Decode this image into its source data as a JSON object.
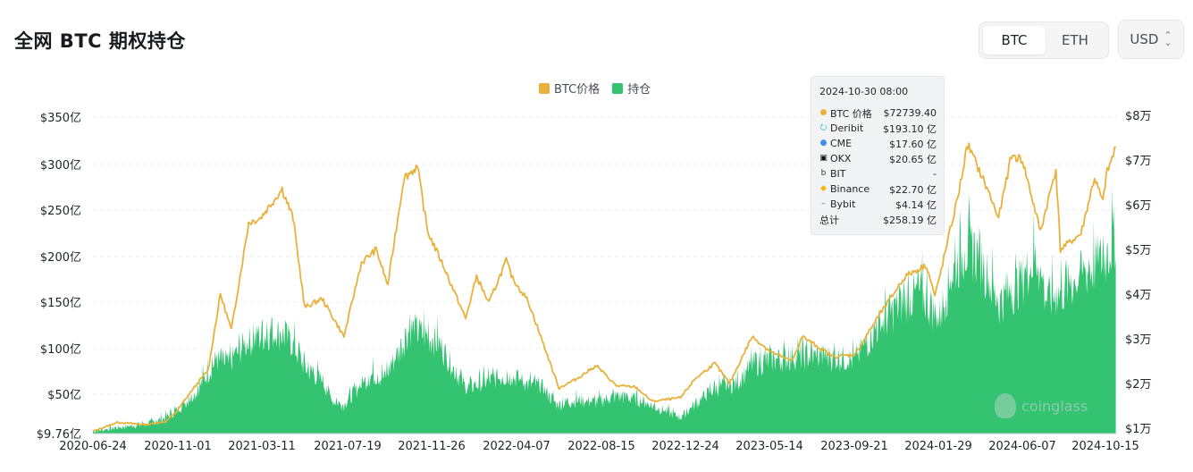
{
  "page": {
    "title": "全网 BTC 期权持仓",
    "asset_toggle": {
      "options": [
        "BTC",
        "ETH"
      ],
      "selected": "BTC"
    },
    "currency_select": {
      "value": "USD"
    }
  },
  "colors": {
    "price": "#e8b13c",
    "oi": "#33c371",
    "grid": "#e9ecef"
  },
  "legend": [
    {
      "name": "BTC价格",
      "color": "#e8b13c"
    },
    {
      "name": "持仓",
      "color": "#33c371"
    }
  ],
  "tooltip": {
    "time": "2024-10-30 08:00",
    "rows": [
      {
        "icon": "btc-price-icon",
        "label": "BTC 价格",
        "value": "$72739.40",
        "color": "#e8b13c"
      },
      {
        "icon": "deribit-icon",
        "label": "Deribit",
        "value": "$193.10 亿",
        "color": "#1bb5c9"
      },
      {
        "icon": "cme-icon",
        "label": "CME",
        "value": "$17.60 亿",
        "color": "#3c8ee8"
      },
      {
        "icon": "okx-icon",
        "label": "OKX",
        "value": "$20.65 亿",
        "color": "#111111"
      },
      {
        "icon": "bit-icon",
        "label": "BIT",
        "value": "-",
        "color": "#333333"
      },
      {
        "icon": "binance-icon",
        "label": "Binance",
        "value": "$22.70 亿",
        "color": "#f0b90b"
      },
      {
        "icon": "bybit-icon",
        "label": "Bybit",
        "value": "$4.14 亿",
        "color": "#555555"
      },
      {
        "icon": "",
        "label": "总计",
        "value": "$258.19 亿",
        "color": ""
      }
    ]
  },
  "watermark": "coinglass",
  "chart_data": {
    "type": "area",
    "title": "全网 BTC 期权持仓",
    "x_ticks": [
      "2020-06-24",
      "2020-11-01",
      "2021-03-11",
      "2021-07-19",
      "2021-11-26",
      "2022-04-07",
      "2022-08-15",
      "2022-12-24",
      "2023-05-14",
      "2023-09-21",
      "2024-01-29",
      "2024-06-07",
      "2024-10-15"
    ],
    "y_left": {
      "ticks": [
        "$9.76亿",
        "$50亿",
        "$100亿",
        "$150亿",
        "$200亿",
        "$250亿",
        "$300亿",
        "$350亿"
      ],
      "tick_values": [
        9.76,
        50,
        100,
        150,
        200,
        250,
        300,
        350
      ],
      "range": [
        9.76,
        350
      ],
      "unit": "亿 USD"
    },
    "y_right": {
      "ticks": [
        "$1万",
        "$2万",
        "$3万",
        "$4万",
        "$5万",
        "$6万",
        "$7万",
        "$8万"
      ],
      "tick_values": [
        10000,
        20000,
        30000,
        40000,
        50000,
        60000,
        70000,
        80000
      ],
      "range": [
        10000,
        80000
      ],
      "unit": "USD"
    },
    "grid": true,
    "legend_position": "top-center",
    "series": [
      {
        "name": "持仓",
        "axis": "left",
        "style": "area",
        "points": [
          [
            "2020-06-24",
            14
          ],
          [
            "2020-08-01",
            18
          ],
          [
            "2020-09-15",
            22
          ],
          [
            "2020-10-15",
            30
          ],
          [
            "2020-11-01",
            38
          ],
          [
            "2020-12-01",
            60
          ],
          [
            "2021-01-01",
            100
          ],
          [
            "2021-01-20",
            95
          ],
          [
            "2021-02-15",
            120
          ],
          [
            "2021-03-11",
            130
          ],
          [
            "2021-03-26",
            135
          ],
          [
            "2021-04-15",
            132
          ],
          [
            "2021-05-01",
            120
          ],
          [
            "2021-05-20",
            90
          ],
          [
            "2021-06-15",
            75
          ],
          [
            "2021-07-01",
            50
          ],
          [
            "2021-07-19",
            45
          ],
          [
            "2021-08-15",
            70
          ],
          [
            "2021-09-01",
            82
          ],
          [
            "2021-09-20",
            78
          ],
          [
            "2021-10-15",
            115
          ],
          [
            "2021-10-29",
            140
          ],
          [
            "2021-11-26",
            130
          ],
          [
            "2021-12-15",
            120
          ],
          [
            "2022-01-01",
            95
          ],
          [
            "2022-01-25",
            65
          ],
          [
            "2022-02-20",
            72
          ],
          [
            "2022-03-15",
            78
          ],
          [
            "2022-04-07",
            80
          ],
          [
            "2022-05-01",
            70
          ],
          [
            "2022-05-20",
            68
          ],
          [
            "2022-06-15",
            45
          ],
          [
            "2022-07-15",
            50
          ],
          [
            "2022-08-15",
            48
          ],
          [
            "2022-09-15",
            55
          ],
          [
            "2022-10-15",
            52
          ],
          [
            "2022-11-15",
            42
          ],
          [
            "2022-12-24",
            30
          ],
          [
            "2023-01-15",
            45
          ],
          [
            "2023-02-15",
            65
          ],
          [
            "2023-03-20",
            70
          ],
          [
            "2023-04-15",
            95
          ],
          [
            "2023-05-14",
            100
          ],
          [
            "2023-06-30",
            105
          ],
          [
            "2023-08-01",
            105
          ],
          [
            "2023-09-21",
            100
          ],
          [
            "2023-10-25",
            140
          ],
          [
            "2023-12-01",
            170
          ],
          [
            "2024-01-01",
            185
          ],
          [
            "2024-01-29",
            150
          ],
          [
            "2024-02-20",
            210
          ],
          [
            "2024-03-10",
            240
          ],
          [
            "2024-04-01",
            230
          ],
          [
            "2024-05-01",
            170
          ],
          [
            "2024-06-07",
            200
          ],
          [
            "2024-06-28",
            230
          ],
          [
            "2024-07-15",
            175
          ],
          [
            "2024-08-15",
            190
          ],
          [
            "2024-09-15",
            210
          ],
          [
            "2024-10-15",
            230
          ],
          [
            "2024-10-30",
            258.19
          ]
        ]
      },
      {
        "name": "BTC价格",
        "axis": "right",
        "style": "line",
        "points": [
          [
            "2020-06-24",
            9300
          ],
          [
            "2020-08-01",
            11300
          ],
          [
            "2020-09-15",
            10800
          ],
          [
            "2020-10-15",
            11500
          ],
          [
            "2020-11-01",
            13700
          ],
          [
            "2020-11-25",
            18500
          ],
          [
            "2020-12-20",
            23000
          ],
          [
            "2021-01-08",
            40000
          ],
          [
            "2021-01-25",
            32000
          ],
          [
            "2021-02-21",
            56000
          ],
          [
            "2021-03-11",
            57000
          ],
          [
            "2021-04-14",
            63500
          ],
          [
            "2021-05-01",
            57000
          ],
          [
            "2021-05-19",
            37000
          ],
          [
            "2021-06-15",
            39000
          ],
          [
            "2021-07-19",
            30500
          ],
          [
            "2021-08-15",
            47000
          ],
          [
            "2021-09-07",
            50000
          ],
          [
            "2021-09-25",
            42000
          ],
          [
            "2021-10-20",
            66000
          ],
          [
            "2021-11-10",
            68500
          ],
          [
            "2021-11-26",
            54000
          ],
          [
            "2021-12-20",
            46500
          ],
          [
            "2022-01-24",
            34500
          ],
          [
            "2022-02-10",
            44000
          ],
          [
            "2022-03-01",
            38000
          ],
          [
            "2022-03-28",
            47500
          ],
          [
            "2022-04-07",
            43500
          ],
          [
            "2022-05-01",
            38500
          ],
          [
            "2022-06-18",
            19000
          ],
          [
            "2022-07-15",
            21000
          ],
          [
            "2022-08-15",
            24000
          ],
          [
            "2022-09-15",
            19500
          ],
          [
            "2022-10-15",
            19200
          ],
          [
            "2022-11-10",
            16000
          ],
          [
            "2022-12-24",
            16800
          ],
          [
            "2023-01-15",
            21000
          ],
          [
            "2023-02-15",
            24500
          ],
          [
            "2023-03-10",
            20000
          ],
          [
            "2023-04-14",
            30500
          ],
          [
            "2023-05-14",
            27000
          ],
          [
            "2023-06-15",
            25000
          ],
          [
            "2023-07-01",
            30500
          ],
          [
            "2023-08-18",
            26000
          ],
          [
            "2023-09-21",
            26500
          ],
          [
            "2023-10-25",
            34500
          ],
          [
            "2023-12-08",
            44000
          ],
          [
            "2024-01-10",
            46500
          ],
          [
            "2024-01-23",
            39500
          ],
          [
            "2024-01-29",
            43000
          ],
          [
            "2024-02-28",
            62000
          ],
          [
            "2024-03-14",
            73500
          ],
          [
            "2024-04-15",
            63000
          ],
          [
            "2024-05-01",
            57000
          ],
          [
            "2024-05-21",
            71000
          ],
          [
            "2024-06-07",
            70000
          ],
          [
            "2024-07-05",
            54000
          ],
          [
            "2024-07-29",
            68000
          ],
          [
            "2024-08-05",
            50000
          ],
          [
            "2024-09-06",
            53500
          ],
          [
            "2024-09-27",
            66000
          ],
          [
            "2024-10-10",
            60500
          ],
          [
            "2024-10-15",
            66500
          ],
          [
            "2024-10-30",
            72739.4
          ]
        ]
      }
    ]
  }
}
